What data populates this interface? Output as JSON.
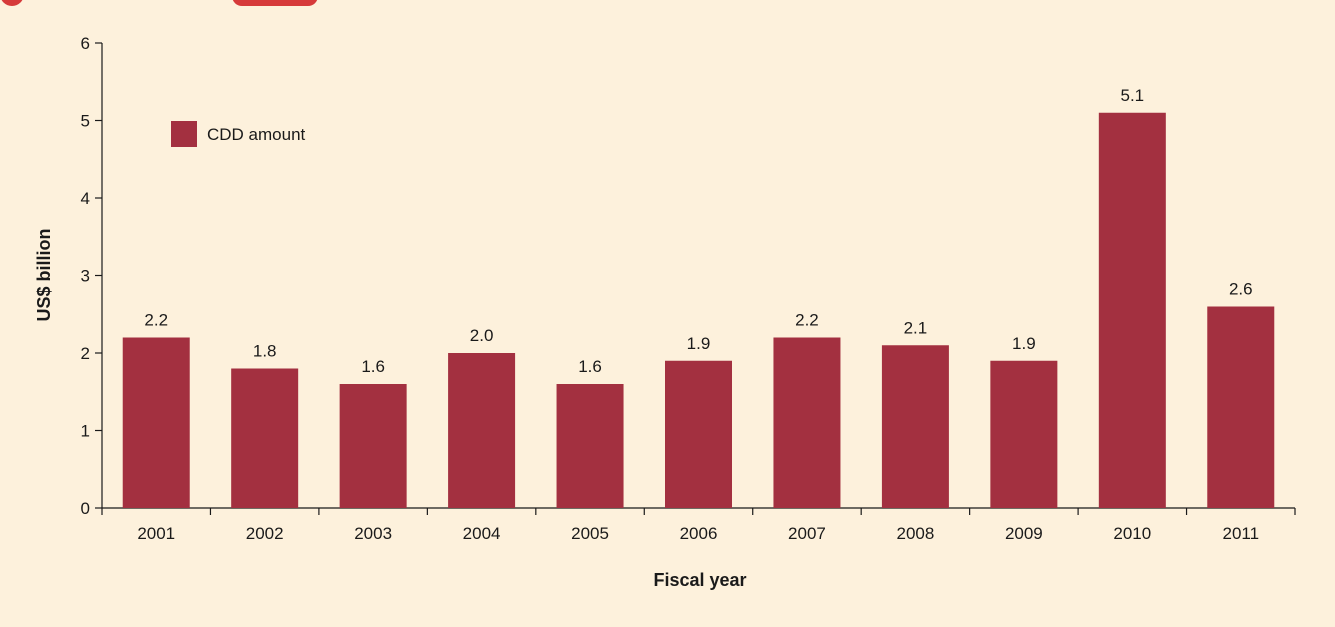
{
  "chart_data": {
    "type": "bar",
    "categories": [
      "2001",
      "2002",
      "2003",
      "2004",
      "2005",
      "2006",
      "2007",
      "2008",
      "2009",
      "2010",
      "2011"
    ],
    "series": [
      {
        "name": "CDD amount",
        "values": [
          2.2,
          1.8,
          1.6,
          2.0,
          1.6,
          1.9,
          2.2,
          2.1,
          1.9,
          5.1,
          2.6
        ],
        "data_labels": [
          "2.2",
          "1.8",
          "1.6",
          "2.0",
          "1.6",
          "1.9",
          "2.2",
          "2.1",
          "1.9",
          "5.1",
          "2.6"
        ]
      }
    ],
    "title": "",
    "xlabel": "Fiscal year",
    "ylabel": "US$ billion",
    "ylim": [
      0,
      6
    ],
    "yticks": [
      "0",
      "1",
      "2",
      "3",
      "4",
      "5",
      "6"
    ],
    "grid": false,
    "legend": "top-left"
  },
  "colors": {
    "bar": "#a33040",
    "background": "#fdf1dc",
    "accent": "#d63a3a"
  }
}
